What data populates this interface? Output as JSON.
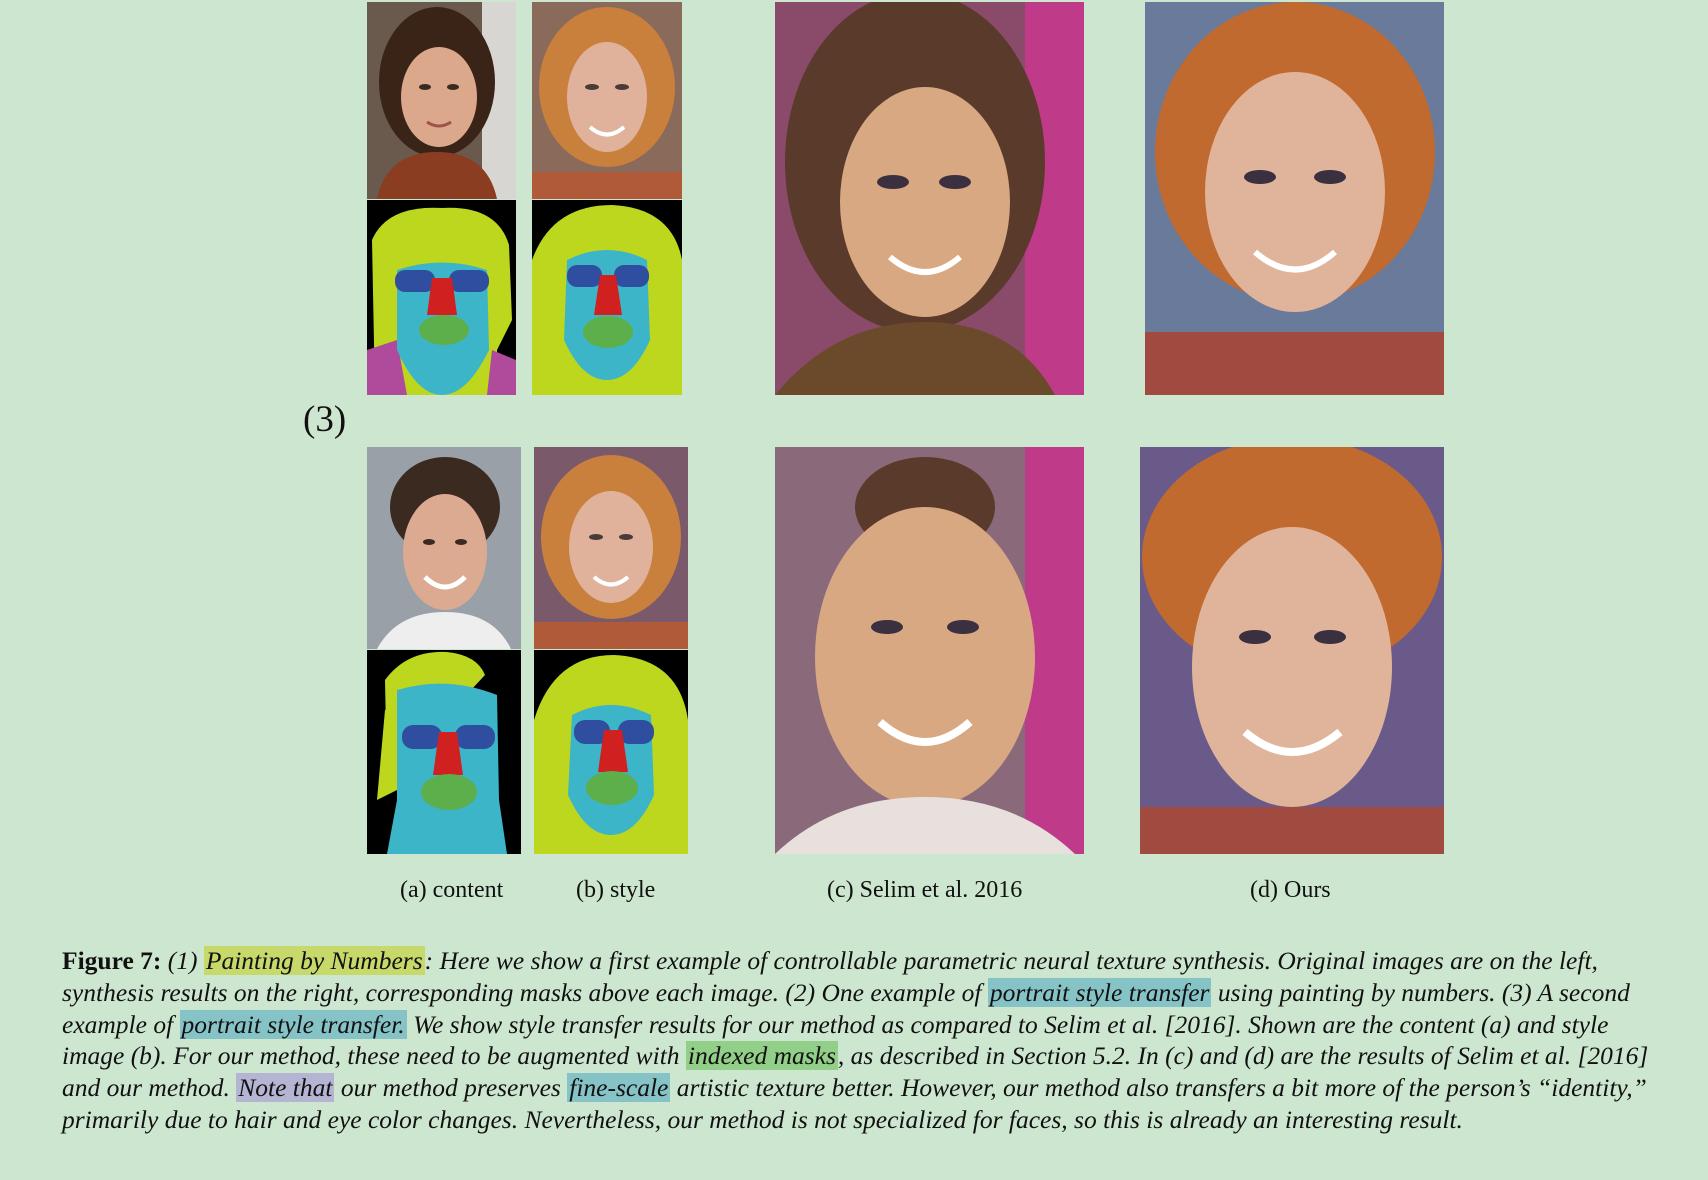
{
  "figure": {
    "row_label": "(3)",
    "subcaptions": {
      "a": "(a) content",
      "b": "(b) style",
      "c": "(c) Selim et al. 2016",
      "d": "(d) Ours"
    },
    "caption": {
      "label": "Figure 7:",
      "seg1": " (1) ",
      "hl1": "Painting by Numbers",
      "seg2": ": Here we show a first example of controllable parametric neural texture synthesis. Original images are on the left, synthesis results on the right, corresponding masks above each image. (2) One example of ",
      "hl2": "portrait style transfer",
      "seg3": " using painting by numbers. (3) A second example of ",
      "hl3": "portrait style transfer.",
      "seg4": " We show style transfer results for our method as compared to Selim et al. [2016]. Shown are the content (a) and style image (b). For our method, these need to be augmented with ",
      "hl4": "indexed masks",
      "seg5": ", as described in Section 5.2. In (c) and (d) are the results of Selim et al. [2016] and our method. ",
      "hl5": "Note that",
      "seg6": " our method preserves ",
      "hl6": "fine-scale",
      "seg7": " artistic texture better. However, our method also transfers a bit more of the person’s “identity,” primarily due to hair and eye color changes. Nevertheless, our method is not specialized for faces, so this is already an interesting result."
    },
    "colors": {
      "background": "#cde6cf",
      "highlight_yellow": "#c6d96a",
      "highlight_cyan": "#86c3c6",
      "highlight_green": "#92cf88",
      "highlight_purple": "#b5b4d2"
    }
  }
}
